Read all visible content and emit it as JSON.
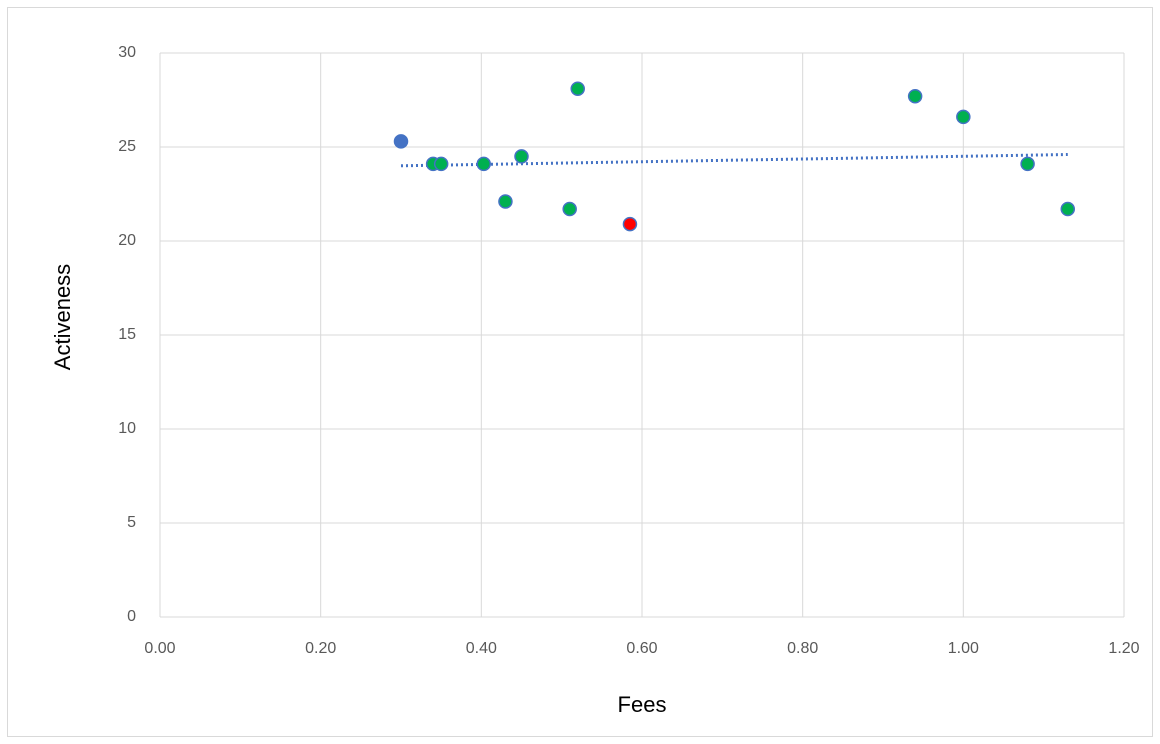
{
  "chart_data": {
    "type": "scatter",
    "xlabel": "Fees",
    "ylabel": "Activeness",
    "x": [
      0.3,
      0.34,
      0.35,
      0.403,
      0.43,
      0.45,
      0.51,
      0.52,
      0.585,
      0.94,
      1.0,
      1.08,
      1.13
    ],
    "values": [
      25.3,
      24.1,
      24.1,
      24.1,
      22.1,
      24.5,
      21.7,
      28.1,
      20.9,
      27.7,
      26.6,
      24.1,
      21.7
    ],
    "colors": [
      "#4472c4",
      "#00b050",
      "#00b050",
      "#00b050",
      "#00b050",
      "#00b050",
      "#00b050",
      "#00b050",
      "#ff0000",
      "#00b050",
      "#00b050",
      "#00b050",
      "#00b050"
    ],
    "edge_color": "#4472c4",
    "trendline": {
      "x": [
        0.3,
        1.13
      ],
      "values": [
        24.0,
        24.6
      ],
      "color": "#4472c4"
    },
    "xlim": [
      0,
      1.2
    ],
    "xticks": [
      {
        "value": 0,
        "label": "0.00"
      },
      {
        "value": 0.2,
        "label": "0.20"
      },
      {
        "value": 0.4,
        "label": "0.40"
      },
      {
        "value": 0.6,
        "label": "0.60"
      },
      {
        "value": 0.8,
        "label": "0.80"
      },
      {
        "value": 1.0,
        "label": "1.00"
      },
      {
        "value": 1.2,
        "label": "1.20"
      }
    ],
    "ylim": [
      0,
      30
    ],
    "yticks": [
      0,
      5,
      10,
      15,
      20,
      25,
      30
    ],
    "grid": true
  }
}
